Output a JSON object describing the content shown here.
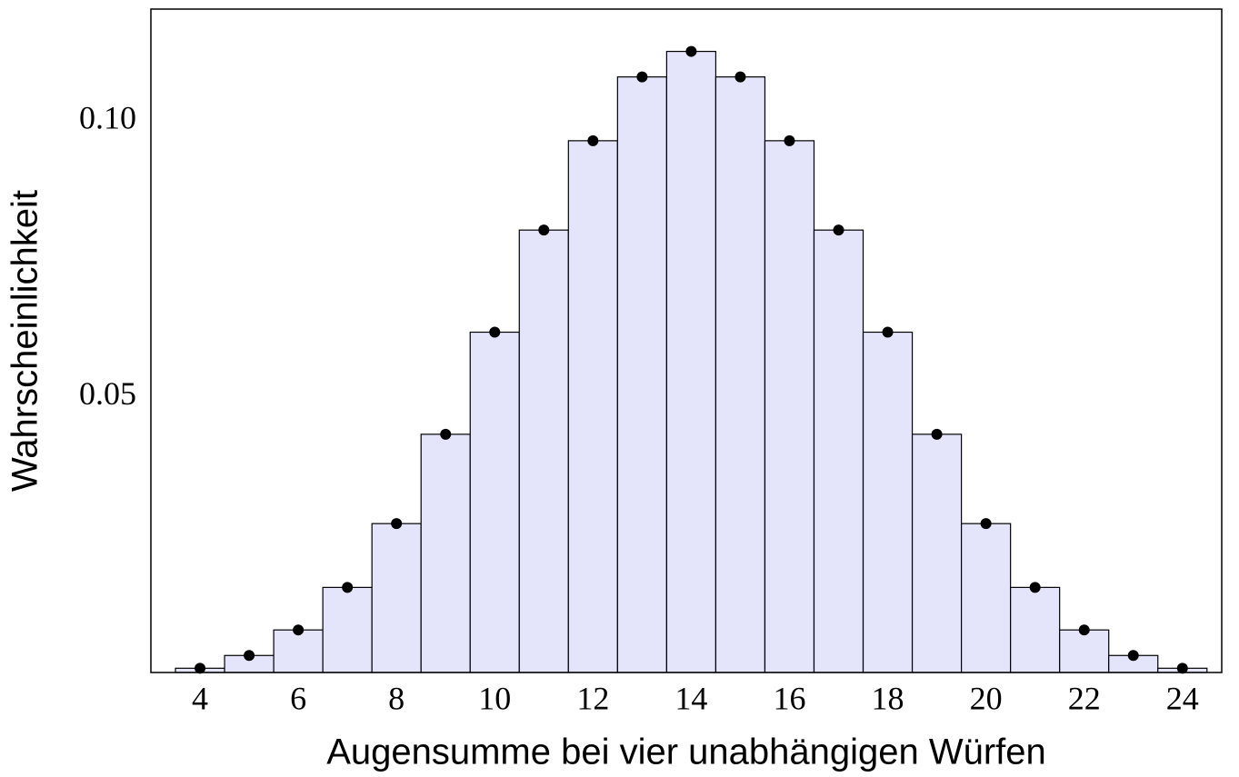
{
  "chart_data": {
    "type": "bar",
    "xlabel": "Augensumme bei vier unabhängigen Würfen",
    "ylabel": "Wahrscheinlichkeit",
    "x": [
      4,
      5,
      6,
      7,
      8,
      9,
      10,
      11,
      12,
      13,
      14,
      15,
      16,
      17,
      18,
      19,
      20,
      21,
      22,
      23,
      24
    ],
    "values": [
      0.000772,
      0.003086,
      0.007716,
      0.015432,
      0.027006,
      0.04321,
      0.061728,
      0.080247,
      0.096451,
      0.108025,
      0.112654,
      0.108025,
      0.096451,
      0.080247,
      0.061728,
      0.04321,
      0.027006,
      0.015432,
      0.007716,
      0.003086,
      0.000772
    ],
    "color": "#e4e4fa",
    "edge_color": "#000000",
    "markers": true,
    "marker_color": "#000000",
    "xlim": [
      3,
      24.8
    ],
    "xticks": [
      4,
      6,
      8,
      10,
      12,
      14,
      16,
      18,
      20,
      22,
      24
    ],
    "ylim": [
      0,
      0.12
    ],
    "yticks": [
      0.05,
      {
        "value": 0.1,
        "label": "0.10"
      }
    ],
    "grid": false
  }
}
